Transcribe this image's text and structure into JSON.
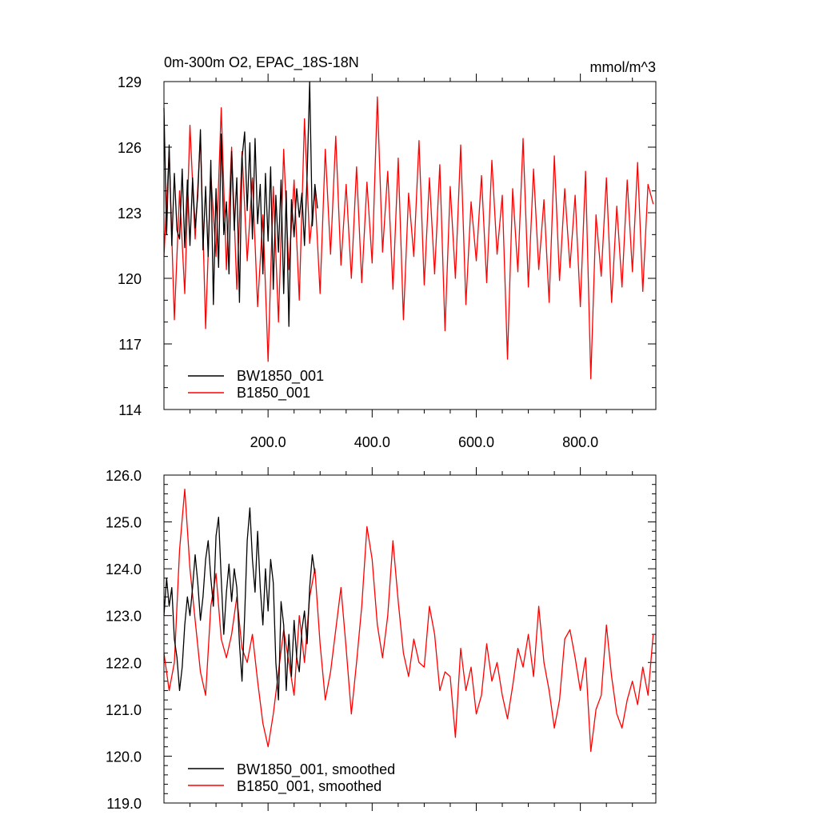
{
  "chart_data": [
    {
      "type": "line",
      "title": "0m-300m O2, EPAC_18S-18N",
      "units": "mmol/m^3",
      "xlim": [
        0,
        945
      ],
      "ylim": [
        114,
        129
      ],
      "x_ticks": [
        200,
        400,
        600,
        800
      ],
      "x_tick_labels": [
        "200.0",
        "400.0",
        "600.0",
        "800.0"
      ],
      "y_ticks": [
        114,
        117,
        120,
        123,
        126,
        129
      ],
      "y_tick_labels": [
        "114",
        "117",
        "120",
        "123",
        "126",
        "129"
      ],
      "legend": {
        "position": "bottom-left",
        "entries": [
          "BW1850_001",
          "B1850_001"
        ]
      },
      "series": [
        {
          "name": "BW1850_001",
          "color": "#000000",
          "x": [
            0,
            5,
            10,
            15,
            20,
            25,
            30,
            35,
            40,
            45,
            50,
            55,
            60,
            65,
            70,
            75,
            80,
            85,
            90,
            95,
            100,
            105,
            110,
            115,
            120,
            125,
            130,
            135,
            140,
            145,
            150,
            155,
            160,
            165,
            170,
            175,
            180,
            185,
            190,
            195,
            200,
            205,
            210,
            215,
            220,
            225,
            230,
            235,
            240,
            245,
            250,
            255,
            260,
            265,
            270,
            275,
            280,
            285,
            290,
            295
          ],
          "values": [
            127.8,
            122.0,
            126.1,
            121.5,
            124.8,
            122.2,
            121.8,
            125.0,
            121.4,
            124.5,
            121.5,
            124.6,
            122.3,
            123.8,
            126.8,
            121.3,
            124.2,
            121.0,
            125.4,
            118.8,
            124.1,
            120.5,
            126.6,
            122.0,
            123.5,
            120.2,
            125.8,
            122.2,
            124.6,
            118.9,
            125.5,
            126.7,
            123.1,
            126.2,
            121.8,
            126.4,
            122.5,
            124.3,
            120.2,
            124.8,
            121.7,
            125.1,
            119.5,
            123.8,
            121.2,
            124.5,
            119.3,
            124.0,
            117.8,
            123.6,
            121.9,
            124.1,
            122.8,
            123.9,
            121.5,
            124.7,
            129.0,
            122.4,
            124.3,
            123.2
          ]
        },
        {
          "name": "B1850_001",
          "color": "#ff0000",
          "x": [
            0,
            10,
            20,
            30,
            40,
            50,
            60,
            70,
            80,
            90,
            100,
            110,
            120,
            130,
            140,
            150,
            160,
            170,
            180,
            190,
            200,
            210,
            220,
            230,
            240,
            250,
            260,
            270,
            280,
            290,
            300,
            310,
            320,
            330,
            340,
            350,
            360,
            370,
            380,
            390,
            400,
            410,
            420,
            430,
            440,
            450,
            460,
            470,
            480,
            490,
            500,
            510,
            520,
            530,
            540,
            550,
            560,
            570,
            580,
            590,
            600,
            610,
            620,
            630,
            640,
            650,
            660,
            670,
            680,
            690,
            700,
            710,
            720,
            730,
            740,
            750,
            760,
            770,
            780,
            790,
            800,
            810,
            820,
            830,
            840,
            850,
            860,
            870,
            880,
            890,
            900,
            910,
            920,
            930,
            940
          ],
          "values": [
            121.0,
            125.8,
            118.1,
            124.0,
            119.3,
            127.0,
            121.8,
            126.5,
            117.7,
            124.8,
            121.0,
            127.8,
            120.4,
            126.0,
            119.5,
            125.8,
            120.8,
            124.6,
            118.7,
            122.9,
            116.2,
            124.2,
            118.0,
            125.9,
            120.4,
            124.5,
            119.0,
            127.3,
            121.6,
            124.0,
            119.3,
            125.9,
            121.1,
            126.5,
            120.6,
            124.3,
            120.0,
            125.1,
            119.8,
            124.4,
            120.7,
            128.3,
            121.2,
            124.9,
            119.5,
            125.5,
            118.1,
            123.9,
            121.0,
            126.3,
            119.7,
            124.6,
            120.2,
            125.2,
            117.6,
            124.2,
            120.0,
            126.1,
            118.8,
            123.5,
            120.8,
            124.7,
            119.8,
            125.4,
            121.1,
            123.8,
            116.3,
            124.1,
            120.3,
            126.4,
            119.6,
            125.0,
            120.4,
            123.6,
            118.9,
            125.6,
            119.9,
            124.1,
            120.5,
            123.8,
            118.7,
            124.9,
            115.4,
            122.9,
            120.1,
            124.6,
            118.9,
            123.3,
            119.6,
            124.5,
            120.3,
            125.3,
            119.4,
            124.3,
            123.4
          ]
        }
      ]
    },
    {
      "type": "line",
      "title": "",
      "xlim": [
        0,
        945
      ],
      "ylim": [
        119,
        126
      ],
      "y_ticks": [
        119,
        120,
        121,
        122,
        123,
        124,
        125,
        126
      ],
      "y_tick_labels": [
        "119.0",
        "120.0",
        "121.0",
        "122.0",
        "123.0",
        "124.0",
        "125.0",
        "126.0"
      ],
      "legend": {
        "position": "bottom-left",
        "entries": [
          "BW1850_001, smoothed",
          "B1850_001, smoothed"
        ]
      },
      "series": [
        {
          "name": "BW1850_001, smoothed",
          "color": "#000000",
          "x": [
            0,
            5,
            10,
            15,
            20,
            25,
            30,
            35,
            40,
            45,
            50,
            55,
            60,
            65,
            70,
            75,
            80,
            85,
            90,
            95,
            100,
            105,
            110,
            115,
            120,
            125,
            130,
            135,
            140,
            145,
            150,
            155,
            160,
            165,
            170,
            175,
            180,
            185,
            190,
            195,
            200,
            205,
            210,
            215,
            220,
            225,
            230,
            235,
            240,
            245,
            250,
            255,
            260,
            265,
            270,
            275,
            280,
            285,
            290
          ],
          "values": [
            123.0,
            123.8,
            123.2,
            123.6,
            122.5,
            122.1,
            121.4,
            121.9,
            122.8,
            123.4,
            123.0,
            123.6,
            124.3,
            123.7,
            122.9,
            123.4,
            124.2,
            124.6,
            123.8,
            123.2,
            124.7,
            125.1,
            123.8,
            122.6,
            123.5,
            124.1,
            123.3,
            124.0,
            123.6,
            122.4,
            121.6,
            123.0,
            124.6,
            125.3,
            124.2,
            123.5,
            124.8,
            123.6,
            122.8,
            124.0,
            123.1,
            124.2,
            123.7,
            122.0,
            121.2,
            123.3,
            122.8,
            121.4,
            122.6,
            121.7,
            122.9,
            122.1,
            121.8,
            122.7,
            123.1,
            122.4,
            123.6,
            124.3,
            123.9
          ]
        },
        {
          "name": "B1850_001, smoothed",
          "color": "#ff0000",
          "x": [
            0,
            10,
            20,
            30,
            40,
            50,
            60,
            70,
            80,
            90,
            100,
            110,
            120,
            130,
            140,
            150,
            160,
            170,
            180,
            190,
            200,
            210,
            220,
            230,
            240,
            250,
            260,
            270,
            280,
            290,
            300,
            310,
            320,
            330,
            340,
            350,
            360,
            370,
            380,
            390,
            400,
            410,
            420,
            430,
            440,
            450,
            460,
            470,
            480,
            490,
            500,
            510,
            520,
            530,
            540,
            550,
            560,
            570,
            580,
            590,
            600,
            610,
            620,
            630,
            640,
            650,
            660,
            670,
            680,
            690,
            700,
            710,
            720,
            730,
            740,
            750,
            760,
            770,
            780,
            790,
            800,
            810,
            820,
            830,
            840,
            850,
            860,
            870,
            880,
            890,
            900,
            910,
            920,
            930,
            940
          ],
          "values": [
            122.2,
            121.4,
            122.0,
            124.4,
            125.7,
            124.0,
            122.9,
            121.8,
            121.3,
            123.2,
            123.9,
            122.5,
            122.1,
            122.6,
            123.4,
            122.3,
            122.0,
            122.6,
            121.6,
            120.7,
            120.2,
            120.9,
            121.8,
            122.7,
            122.0,
            121.3,
            123.0,
            122.0,
            123.4,
            124.0,
            122.4,
            121.2,
            121.8,
            122.7,
            123.6,
            122.3,
            120.9,
            122.0,
            123.2,
            124.9,
            124.2,
            122.8,
            122.1,
            123.0,
            124.6,
            123.3,
            122.2,
            121.7,
            122.5,
            122.0,
            121.9,
            123.2,
            122.6,
            121.4,
            121.8,
            121.7,
            120.4,
            122.3,
            121.4,
            121.9,
            120.9,
            121.3,
            122.4,
            121.6,
            122.0,
            121.3,
            120.8,
            121.5,
            122.3,
            121.9,
            122.6,
            121.7,
            123.2,
            122.0,
            121.4,
            120.6,
            121.2,
            122.5,
            122.7,
            122.1,
            121.4,
            122.1,
            120.1,
            121.0,
            121.3,
            122.8,
            121.7,
            120.9,
            120.6,
            121.2,
            121.6,
            121.1,
            121.9,
            121.3,
            122.6
          ]
        }
      ]
    }
  ]
}
